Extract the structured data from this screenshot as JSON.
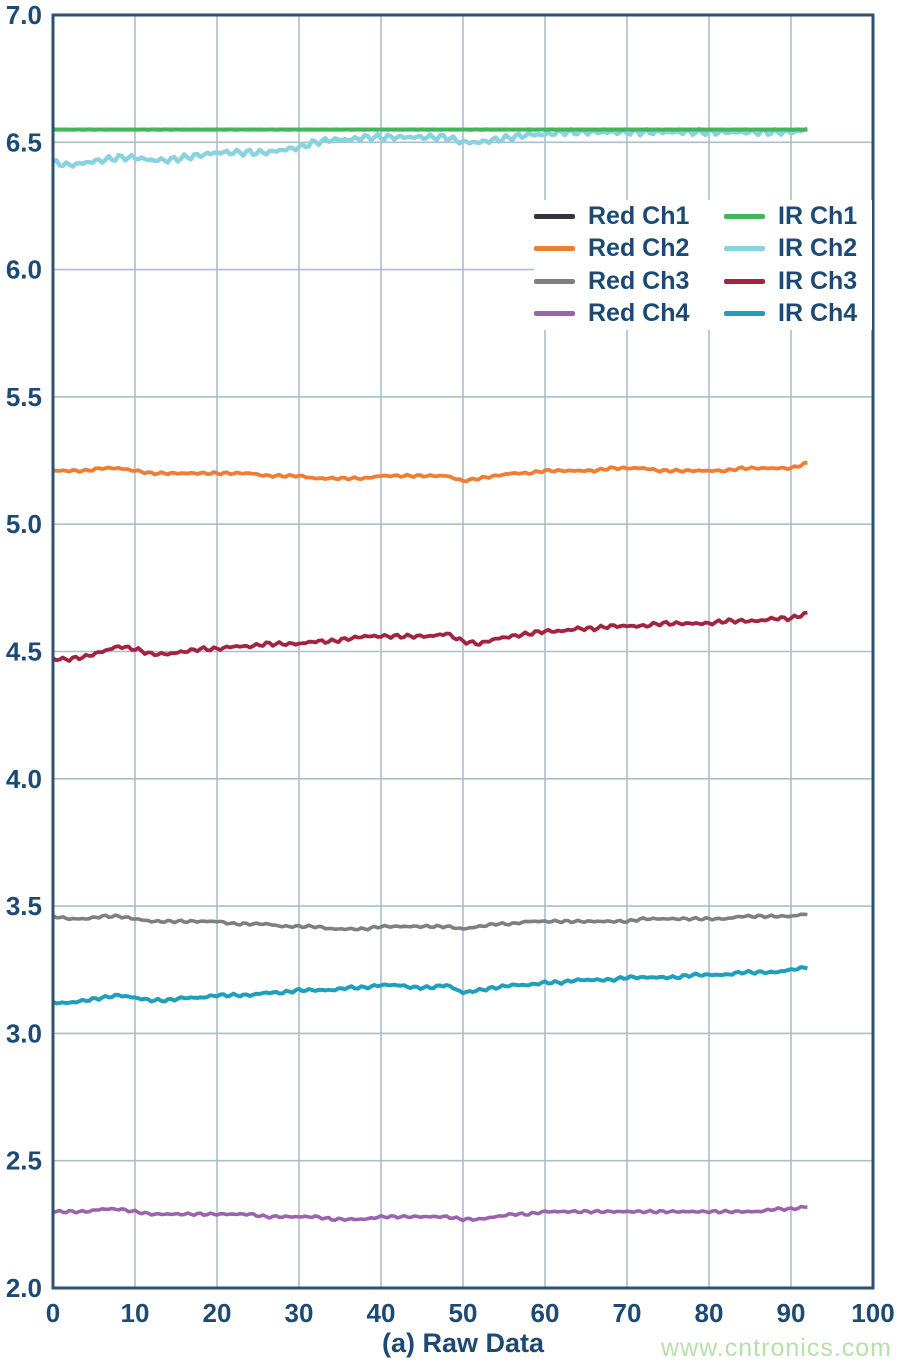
{
  "figure": {
    "caption": "(a) Raw Data",
    "watermark": "www.cntronics.com",
    "colors": {
      "axis_text": "#1c4a74",
      "plot_border": "#2f506e",
      "grid": "#aabfca",
      "background": "#ffffff",
      "watermark": "#b7e0aa"
    }
  },
  "chart_data": {
    "type": "line",
    "title": "",
    "xlabel": "(a) Raw Data",
    "ylabel": "",
    "xlim": [
      0,
      100
    ],
    "ylim": [
      2.0,
      7.0
    ],
    "grid": true,
    "legend_position": "inside-upper-right",
    "x_ticks": [
      0,
      10,
      20,
      30,
      40,
      50,
      60,
      70,
      80,
      90,
      100
    ],
    "x_tick_labels": [
      "0",
      "10",
      "20",
      "30",
      "40",
      "50",
      "60",
      "70",
      "80",
      "90",
      "100"
    ],
    "y_ticks": [
      7.0,
      6.5,
      6.0,
      5.5,
      5.0,
      4.5,
      4.0,
      3.5,
      3.0,
      2.5,
      2.0
    ],
    "y_tick_labels": [
      "7.0",
      "6.5",
      "6.0",
      "5.5",
      "5.0",
      "4.5",
      "4.0",
      "3.5",
      "3.0",
      "2.5",
      "2.0"
    ],
    "x": [
      0,
      2,
      4,
      6,
      8,
      10,
      12,
      14,
      16,
      18,
      20,
      22,
      24,
      26,
      28,
      30,
      32,
      34,
      36,
      38,
      40,
      42,
      44,
      46,
      48,
      50,
      52,
      54,
      56,
      58,
      60,
      62,
      64,
      66,
      68,
      70,
      72,
      74,
      76,
      78,
      80,
      82,
      84,
      86,
      88,
      90,
      92
    ],
    "legend_columns": [
      [
        "Red Ch1",
        "Red Ch2",
        "Red Ch3",
        "Red Ch4"
      ],
      [
        "IR Ch1",
        "IR Ch2",
        "IR Ch3",
        "IR Ch4"
      ]
    ],
    "draw_order": [
      "Red Ch1",
      "IR Ch2",
      "Red Ch2",
      "Red Ch3",
      "Red Ch4",
      "IR Ch3",
      "IR Ch4",
      "IR Ch1"
    ],
    "series": [
      {
        "name": "Red Ch1",
        "color": "#35353d",
        "noise": 0.0006,
        "width": 3.6,
        "values": [
          6.55,
          6.55,
          6.55,
          6.55,
          6.55,
          6.55,
          6.55,
          6.55,
          6.55,
          6.55,
          6.55,
          6.55,
          6.55,
          6.55,
          6.55,
          6.55,
          6.55,
          6.55,
          6.55,
          6.55,
          6.55,
          6.55,
          6.55,
          6.55,
          6.55,
          6.55,
          6.55,
          6.55,
          6.55,
          6.55,
          6.55,
          6.55,
          6.55,
          6.55,
          6.55,
          6.55,
          6.55,
          6.55,
          6.55,
          6.55,
          6.55,
          6.55,
          6.55,
          6.55,
          6.55,
          6.55,
          6.55
        ]
      },
      {
        "name": "Red Ch2",
        "color": "#ef7d33",
        "noise": 0.005,
        "width": 3.8,
        "values": [
          5.21,
          5.21,
          5.21,
          5.22,
          5.22,
          5.21,
          5.2,
          5.2,
          5.2,
          5.2,
          5.2,
          5.2,
          5.2,
          5.19,
          5.19,
          5.19,
          5.18,
          5.18,
          5.18,
          5.18,
          5.19,
          5.19,
          5.19,
          5.19,
          5.19,
          5.17,
          5.18,
          5.19,
          5.2,
          5.2,
          5.21,
          5.21,
          5.21,
          5.21,
          5.22,
          5.22,
          5.22,
          5.21,
          5.21,
          5.21,
          5.21,
          5.21,
          5.22,
          5.22,
          5.22,
          5.22,
          5.24
        ]
      },
      {
        "name": "Red Ch3",
        "color": "#7e7f81",
        "noise": 0.005,
        "width": 3.6,
        "values": [
          3.46,
          3.45,
          3.45,
          3.46,
          3.46,
          3.45,
          3.44,
          3.44,
          3.44,
          3.44,
          3.44,
          3.43,
          3.43,
          3.43,
          3.42,
          3.42,
          3.42,
          3.41,
          3.41,
          3.41,
          3.42,
          3.42,
          3.42,
          3.42,
          3.42,
          3.41,
          3.42,
          3.43,
          3.43,
          3.44,
          3.44,
          3.44,
          3.44,
          3.44,
          3.44,
          3.44,
          3.45,
          3.45,
          3.45,
          3.45,
          3.45,
          3.45,
          3.46,
          3.46,
          3.46,
          3.46,
          3.47
        ]
      },
      {
        "name": "Red Ch4",
        "color": "#9c63ad",
        "noise": 0.005,
        "width": 3.6,
        "values": [
          2.3,
          2.3,
          2.3,
          2.31,
          2.31,
          2.3,
          2.29,
          2.29,
          2.29,
          2.29,
          2.29,
          2.29,
          2.29,
          2.28,
          2.28,
          2.28,
          2.28,
          2.27,
          2.27,
          2.27,
          2.28,
          2.28,
          2.28,
          2.28,
          2.28,
          2.27,
          2.27,
          2.28,
          2.29,
          2.29,
          2.3,
          2.3,
          2.3,
          2.3,
          2.3,
          2.3,
          2.3,
          2.3,
          2.3,
          2.3,
          2.3,
          2.3,
          2.3,
          2.3,
          2.31,
          2.31,
          2.32
        ]
      },
      {
        "name": "IR Ch1",
        "color": "#42b75a",
        "noise": 0.0006,
        "width": 4.0,
        "values": [
          6.55,
          6.55,
          6.55,
          6.55,
          6.55,
          6.55,
          6.55,
          6.55,
          6.55,
          6.55,
          6.55,
          6.55,
          6.55,
          6.55,
          6.55,
          6.55,
          6.55,
          6.55,
          6.55,
          6.55,
          6.55,
          6.55,
          6.55,
          6.55,
          6.55,
          6.55,
          6.55,
          6.55,
          6.55,
          6.55,
          6.55,
          6.55,
          6.55,
          6.55,
          6.55,
          6.55,
          6.55,
          6.55,
          6.55,
          6.55,
          6.55,
          6.55,
          6.55,
          6.55,
          6.55,
          6.55,
          6.55
        ]
      },
      {
        "name": "IR Ch2",
        "color": "#8ad2e0",
        "noise": 0.013,
        "width": 4.4,
        "values": [
          6.42,
          6.41,
          6.42,
          6.43,
          6.44,
          6.44,
          6.43,
          6.43,
          6.44,
          6.45,
          6.46,
          6.46,
          6.46,
          6.46,
          6.47,
          6.48,
          6.5,
          6.51,
          6.51,
          6.52,
          6.52,
          6.52,
          6.52,
          6.52,
          6.52,
          6.5,
          6.5,
          6.51,
          6.52,
          6.53,
          6.53,
          6.54,
          6.54,
          6.54,
          6.54,
          6.54,
          6.54,
          6.54,
          6.54,
          6.54,
          6.54,
          6.54,
          6.54,
          6.54,
          6.54,
          6.54,
          6.55
        ]
      },
      {
        "name": "IR Ch3",
        "color": "#a22440",
        "noise": 0.008,
        "width": 3.8,
        "values": [
          4.47,
          4.47,
          4.48,
          4.5,
          4.52,
          4.51,
          4.49,
          4.49,
          4.5,
          4.51,
          4.51,
          4.52,
          4.52,
          4.53,
          4.53,
          4.53,
          4.54,
          4.54,
          4.55,
          4.56,
          4.56,
          4.56,
          4.56,
          4.56,
          4.57,
          4.54,
          4.53,
          4.55,
          4.56,
          4.57,
          4.58,
          4.58,
          4.59,
          4.59,
          4.6,
          4.6,
          4.6,
          4.61,
          4.61,
          4.61,
          4.61,
          4.62,
          4.62,
          4.62,
          4.63,
          4.63,
          4.65
        ]
      },
      {
        "name": "IR Ch4",
        "color": "#1f9fbc",
        "noise": 0.006,
        "width": 4.0,
        "values": [
          3.12,
          3.12,
          3.13,
          3.14,
          3.15,
          3.14,
          3.13,
          3.13,
          3.14,
          3.14,
          3.15,
          3.15,
          3.15,
          3.16,
          3.16,
          3.17,
          3.17,
          3.17,
          3.18,
          3.18,
          3.19,
          3.19,
          3.18,
          3.18,
          3.19,
          3.16,
          3.17,
          3.18,
          3.19,
          3.19,
          3.2,
          3.2,
          3.21,
          3.21,
          3.21,
          3.22,
          3.22,
          3.22,
          3.22,
          3.23,
          3.23,
          3.23,
          3.24,
          3.24,
          3.24,
          3.25,
          3.26
        ]
      }
    ]
  }
}
